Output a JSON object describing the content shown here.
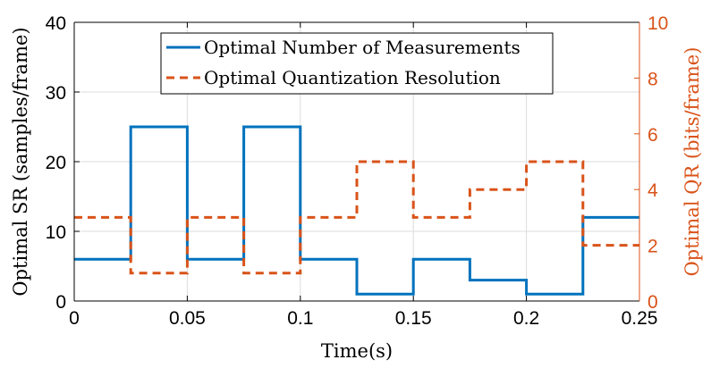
{
  "chart_data": {
    "type": "line",
    "xlabel": "Time(s)",
    "ylabel_left": "Optimal SR (samples/frame)",
    "ylabel_right": "Optimal QR (bits/frame)",
    "xlim": [
      0,
      0.25
    ],
    "ylim_left": [
      0,
      40
    ],
    "ylim_right": [
      0,
      10
    ],
    "xticks": [
      "0",
      "0.05",
      "0.1",
      "0.15",
      "0.2",
      "0.25"
    ],
    "yticks_left": [
      "0",
      "10",
      "20",
      "30",
      "40"
    ],
    "yticks_right": [
      "0",
      "2",
      "4",
      "6",
      "8",
      "10"
    ],
    "grid": true,
    "legend_placement": "top-center",
    "x_steps": [
      0,
      0.025,
      0.05,
      0.075,
      0.1,
      0.125,
      0.15,
      0.175,
      0.2,
      0.225,
      0.25
    ],
    "series": [
      {
        "name": "Optimal Number of Measurements",
        "axis": "left",
        "style": "solid-step",
        "color": "#0072BD",
        "values": [
          6,
          25,
          6,
          25,
          6,
          1,
          6,
          3,
          1,
          12
        ]
      },
      {
        "name": "Optimal Quantization Resolution",
        "axis": "right",
        "style": "dashed-step",
        "color": "#D95319",
        "values": [
          3,
          1,
          3,
          1,
          3,
          5,
          3,
          4,
          5,
          2
        ]
      }
    ]
  }
}
